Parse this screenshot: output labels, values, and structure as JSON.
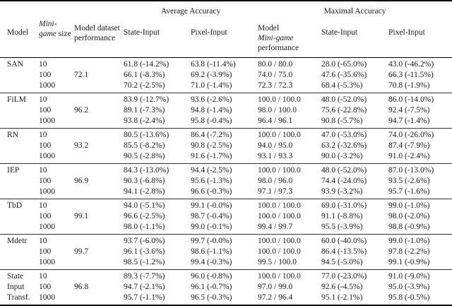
{
  "table": {
    "group_headers": {
      "average": "Average Accuracy",
      "maximal": "Maximal Accuracy"
    },
    "columns": {
      "model": "Model",
      "minigame_size_italic": "Mini-game",
      "minigame_size_rest": "size",
      "dataset_performance": "Model dataset performance",
      "avg_state": "State-Input",
      "avg_pixel": "Pixel-Input",
      "max_model_perf_line1": "Model",
      "max_model_perf_italic": "Mini-game",
      "max_model_perf_line3": "performance",
      "max_state": "State-Input",
      "max_pixel": "Pixel-Input"
    },
    "blocks": [
      {
        "model_lines": [
          "SAN"
        ],
        "dataset_performance": "72.1",
        "rows": [
          {
            "size": "10",
            "avg_state": "61.8 (-14.2%)",
            "avg_pixel": "63.8 (-11.4%)",
            "max_model_perf": "80.0 / 80.0",
            "max_state": "28.0 (-65.0%)",
            "max_pixel": "43.0 (-46.2%)"
          },
          {
            "size": "100",
            "avg_state": "66.1 (-8.3%)",
            "avg_pixel": "69.2 (-3.9%)",
            "max_model_perf": "74.0 / 75.0",
            "max_state": "47.6 (-35.6%)",
            "max_pixel": "66.3 (-11.5%)"
          },
          {
            "size": "1000",
            "avg_state": "70.2 (-2.5%)",
            "avg_pixel": "71.0 (-1.4%)",
            "max_model_perf": "72.3 / 72.3",
            "max_state": "68.4 (-5.3%)",
            "max_pixel": "70.8 (-1.9%)"
          }
        ]
      },
      {
        "model_lines": [
          "FiLM"
        ],
        "dataset_performance": "96.2",
        "rows": [
          {
            "size": "10",
            "avg_state": "83.9 (-12.7%)",
            "avg_pixel": "93.6 (-2.6%)",
            "max_model_perf": "100.0 / 100.0",
            "max_state": "48.0 (-52.0%)",
            "max_pixel": "86.0 (-14.0%)"
          },
          {
            "size": "100",
            "avg_state": "89.1 (-7.3%)",
            "avg_pixel": "94.8 (-1.4%)",
            "max_model_perf": "98.0 / 100.0",
            "max_state": "75.6 (-22.8%)",
            "max_pixel": "92.4 (-7.5%)"
          },
          {
            "size": "1000",
            "avg_state": "93.8 (-2.4%)",
            "avg_pixel": "95.8 (-0.4%)",
            "max_model_perf": "96.4 / 96.1",
            "max_state": "90.8 (-5.7%)",
            "max_pixel": "94.7 (-1.4%)"
          }
        ]
      },
      {
        "model_lines": [
          "RN"
        ],
        "dataset_performance": "93.2",
        "rows": [
          {
            "size": "10",
            "avg_state": "80.5 (-13.6%)",
            "avg_pixel": "86.4 (-7.2%)",
            "max_model_perf": "100.0 / 100.0",
            "max_state": "47.0 (-53.0%)",
            "max_pixel": "74.0 (-26.0%)"
          },
          {
            "size": "100",
            "avg_state": "85.5 (-8.2%)",
            "avg_pixel": "90.8 (-2.5%)",
            "max_model_perf": "94.0 / 95.0",
            "max_state": "63.2 (-32.6%)",
            "max_pixel": "87.4 (-7.9%)"
          },
          {
            "size": "1000",
            "avg_state": "90.5 (-2.8%)",
            "avg_pixel": "91.6 (-1.7%)",
            "max_model_perf": "93.1 / 93.3",
            "max_state": "90.0 (-3.2%)",
            "max_pixel": "91.0 (-2.4%)"
          }
        ]
      },
      {
        "model_lines": [
          "IEP"
        ],
        "dataset_performance": "96.9",
        "rows": [
          {
            "size": "10",
            "avg_state": "84.3 (-13.0%)",
            "avg_pixel": "94.4 (-2.5%)",
            "max_model_perf": "100.0 / 100.0",
            "max_state": "48.0 (-52.0%)",
            "max_pixel": "87.0 (-13.0%)"
          },
          {
            "size": "100",
            "avg_state": "90.3 (-6.8%)",
            "avg_pixel": "95.6 (-1.3%)",
            "max_model_perf": "98.0 / 96.0",
            "max_state": "74.4 (-24.0%)",
            "max_pixel": "93.5 (-2.6%)"
          },
          {
            "size": "1000",
            "avg_state": "94.1 (-2.8%)",
            "avg_pixel": "96.6 (-0.3%)",
            "max_model_perf": "97.1 / 97.3",
            "max_state": "93.9 (-3.2%)",
            "max_pixel": "95.7 (-1.6%)"
          }
        ]
      },
      {
        "model_lines": [
          "TbD"
        ],
        "dataset_performance": "99.1",
        "rows": [
          {
            "size": "10",
            "avg_state": "94.0 (-5.1%)",
            "avg_pixel": "99.1 (-0.0%)",
            "max_model_perf": "100.0 / 100.0",
            "max_state": "69.0 (-31.0%)",
            "max_pixel": "99.0 (-1.0%)"
          },
          {
            "size": "100",
            "avg_state": "96.6 (-2.5%)",
            "avg_pixel": "98.7 (-0.4%)",
            "max_model_perf": "100.0 / 100.0",
            "max_state": "91.1 (-8.8%)",
            "max_pixel": "98.0 (-2.0%)"
          },
          {
            "size": "1000",
            "avg_state": "98.0 (-1.1%)",
            "avg_pixel": "99.0 (-0.1%)",
            "max_model_perf": "99.4 / 99.7",
            "max_state": "95.5 (-3.9%)",
            "max_pixel": "98.8 (-0.9%)"
          }
        ]
      },
      {
        "model_lines": [
          "Mdetr"
        ],
        "dataset_performance": "99.7",
        "rows": [
          {
            "size": "10",
            "avg_state": "93.7 (-6.0%)",
            "avg_pixel": "99.7 (-0.0%)",
            "max_model_perf": "100.0 / 100.0",
            "max_state": "60.0 (-40.0%)",
            "max_pixel": "99.0 (-1.0%)"
          },
          {
            "size": "100",
            "avg_state": "96.1 (-3.6%)",
            "avg_pixel": "98.6 (-1.1%)",
            "max_model_perf": "100.0 / 100.0",
            "max_state": "86.4 (-13.5%)",
            "max_pixel": "97.8 (-2.2%)"
          },
          {
            "size": "1000",
            "avg_state": "98.5 (-1.2%)",
            "avg_pixel": "99.4 (-0.3%)",
            "max_model_perf": "99.5 / 100.0",
            "max_state": "94.5 (-5.0%)",
            "max_pixel": "99.1 (-0.9%)"
          }
        ]
      },
      {
        "model_lines": [
          "State",
          "Input",
          "Transf."
        ],
        "dataset_performance": "96.8",
        "rows": [
          {
            "size": "10",
            "avg_state": "89.3 (-7.7%)",
            "avg_pixel": "96.0 (-0.8%)",
            "max_model_perf": "100.0 / 100.0",
            "max_state": "77.0 (-23.0%)",
            "max_pixel": "91.0 (-9.0%)"
          },
          {
            "size": "100",
            "avg_state": "94.7 (-2.1%)",
            "avg_pixel": "96.1 (-0.7%)",
            "max_model_perf": "97.0 / 99.0",
            "max_state": "92.6 (-4.5%)",
            "max_pixel": "95.0 (-3.9%)"
          },
          {
            "size": "1000",
            "avg_state": "95.7 (-1.1%)",
            "avg_pixel": "96.5 (-0.3%)",
            "max_model_perf": "97.2 / 96.4",
            "max_state": "95.1 (-2.1%)",
            "max_pixel": "95.8 (-0.5%)"
          }
        ]
      }
    ]
  }
}
